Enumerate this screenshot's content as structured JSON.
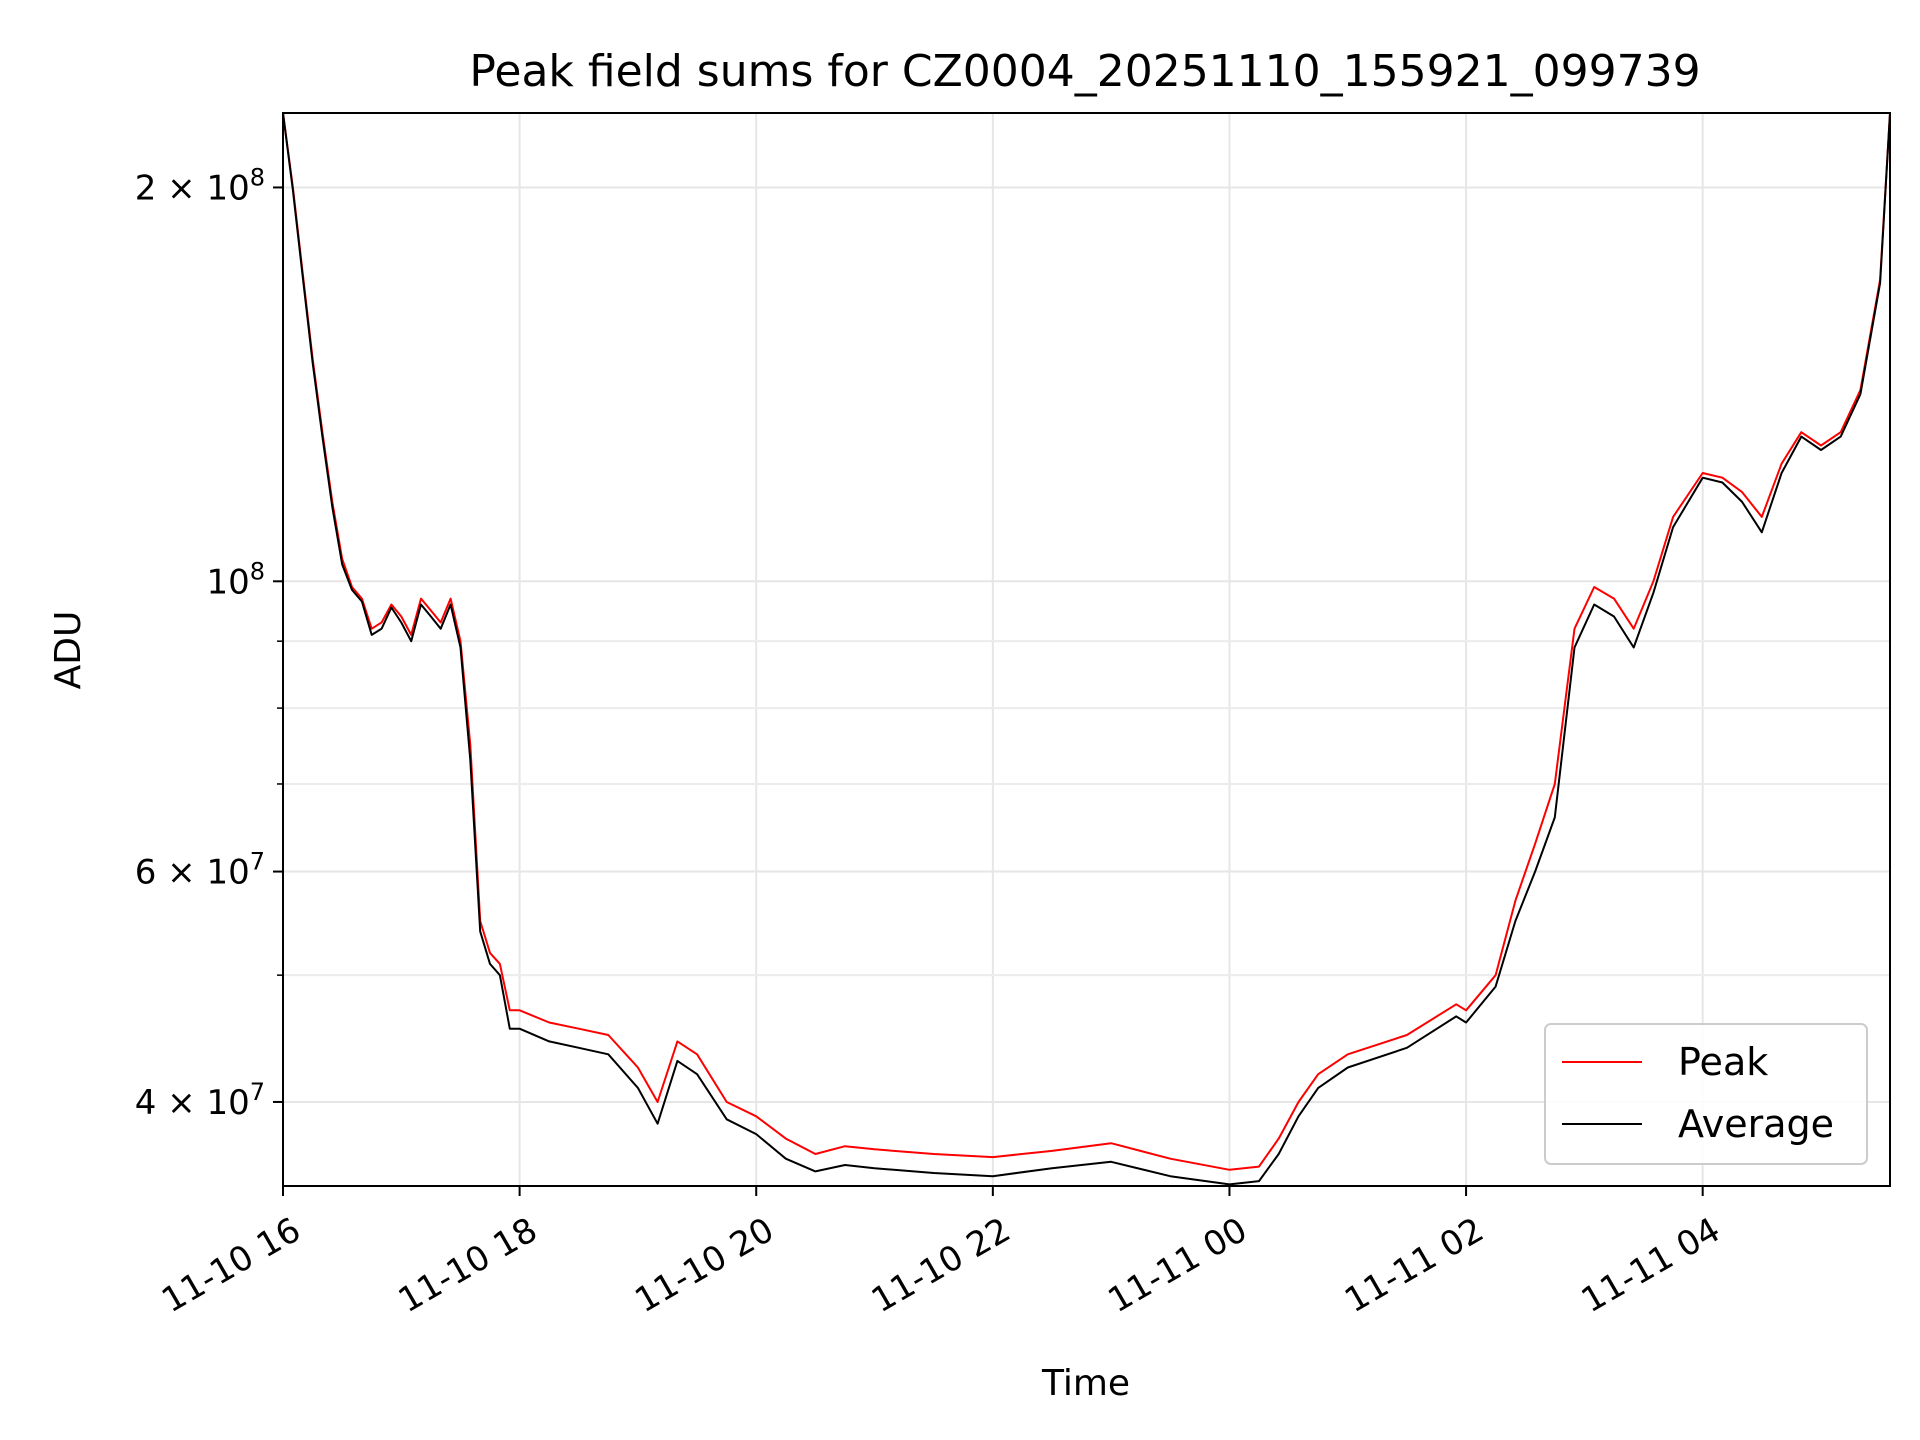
{
  "chart_data": {
    "type": "line",
    "title": "Peak field sums for CZ0004_20251110_155921_099739",
    "xlabel": "Time",
    "ylabel": "ADU",
    "yscale": "log",
    "xlim": [
      "2025-11-10 16:00",
      "2025-11-11 05:35"
    ],
    "ylim": [
      34500000,
      228000000
    ],
    "grid": true,
    "legend_position": "lower-right",
    "x_ticks": [
      {
        "time": "2025-11-10 16:00",
        "label": "11-10 16"
      },
      {
        "time": "2025-11-10 18:00",
        "label": "11-10 18"
      },
      {
        "time": "2025-11-10 20:00",
        "label": "11-10 20"
      },
      {
        "time": "2025-11-10 22:00",
        "label": "11-10 22"
      },
      {
        "time": "2025-11-11 00:00",
        "label": "11-11 00"
      },
      {
        "time": "2025-11-11 02:00",
        "label": "11-11 02"
      },
      {
        "time": "2025-11-11 04:00",
        "label": "11-11 04"
      }
    ],
    "y_major_ticks": [
      {
        "value": 200000000,
        "mantissa": "2",
        "exponent": "8"
      },
      {
        "value": 100000000,
        "mantissa": "",
        "exponent": "8"
      },
      {
        "value": 60000000,
        "mantissa": "6",
        "exponent": "7"
      },
      {
        "value": 40000000,
        "mantissa": "4",
        "exponent": "7"
      }
    ],
    "y_minor_values": [
      90000000,
      80000000,
      70000000,
      50000000
    ],
    "series": [
      {
        "name": "Peak",
        "color": "#ff0000",
        "x": [
          "2025-11-10 16:00",
          "2025-11-10 16:05",
          "2025-11-10 16:10",
          "2025-11-10 16:15",
          "2025-11-10 16:20",
          "2025-11-10 16:25",
          "2025-11-10 16:30",
          "2025-11-10 16:35",
          "2025-11-10 16:40",
          "2025-11-10 16:45",
          "2025-11-10 16:50",
          "2025-11-10 16:55",
          "2025-11-10 17:00",
          "2025-11-10 17:05",
          "2025-11-10 17:10",
          "2025-11-10 17:15",
          "2025-11-10 17:20",
          "2025-11-10 17:25",
          "2025-11-10 17:30",
          "2025-11-10 17:35",
          "2025-11-10 17:40",
          "2025-11-10 17:45",
          "2025-11-10 17:50",
          "2025-11-10 17:55",
          "2025-11-10 18:00",
          "2025-11-10 18:15",
          "2025-11-10 18:30",
          "2025-11-10 18:45",
          "2025-11-10 19:00",
          "2025-11-10 19:10",
          "2025-11-10 19:20",
          "2025-11-10 19:30",
          "2025-11-10 19:45",
          "2025-11-10 20:00",
          "2025-11-10 20:15",
          "2025-11-10 20:30",
          "2025-11-10 20:45",
          "2025-11-10 21:00",
          "2025-11-10 21:30",
          "2025-11-10 22:00",
          "2025-11-10 22:30",
          "2025-11-10 23:00",
          "2025-11-10 23:30",
          "2025-11-11 00:00",
          "2025-11-11 00:15",
          "2025-11-11 00:25",
          "2025-11-11 00:35",
          "2025-11-11 00:45",
          "2025-11-11 01:00",
          "2025-11-11 01:30",
          "2025-11-11 01:55",
          "2025-11-11 02:00",
          "2025-11-11 02:15",
          "2025-11-11 02:25",
          "2025-11-11 02:35",
          "2025-11-11 02:45",
          "2025-11-11 02:55",
          "2025-11-11 03:05",
          "2025-11-11 03:15",
          "2025-11-11 03:25",
          "2025-11-11 03:35",
          "2025-11-11 03:45",
          "2025-11-11 04:00",
          "2025-11-11 04:10",
          "2025-11-11 04:20",
          "2025-11-11 04:30",
          "2025-11-11 04:40",
          "2025-11-11 04:50",
          "2025-11-11 05:00",
          "2025-11-11 05:10",
          "2025-11-11 05:20",
          "2025-11-11 05:30",
          "2025-11-11 05:35"
        ],
        "values": [
          228000000,
          200000000,
          172000000,
          148000000,
          130000000,
          115000000,
          104000000,
          99000000,
          97000000,
          92000000,
          93000000,
          96000000,
          94000000,
          91000000,
          97000000,
          95000000,
          93000000,
          97000000,
          90000000,
          75000000,
          55000000,
          52000000,
          51000000,
          47000000,
          47000000,
          46000000,
          45500000,
          45000000,
          42500000,
          40000000,
          44500000,
          43500000,
          40000000,
          39000000,
          37500000,
          36500000,
          37000000,
          36800000,
          36500000,
          36300000,
          36700000,
          37200000,
          36200000,
          35500000,
          35700000,
          37500000,
          40000000,
          42000000,
          43500000,
          45000000,
          47500000,
          47000000,
          50000000,
          57000000,
          63000000,
          70000000,
          92000000,
          99000000,
          97000000,
          92000000,
          100000000,
          112000000,
          121000000,
          120000000,
          117000000,
          112000000,
          123000000,
          130000000,
          127000000,
          130000000,
          140000000,
          170000000,
          228000000
        ]
      },
      {
        "name": "Average",
        "color": "#000000",
        "x": [
          "2025-11-10 16:00",
          "2025-11-10 16:05",
          "2025-11-10 16:10",
          "2025-11-10 16:15",
          "2025-11-10 16:20",
          "2025-11-10 16:25",
          "2025-11-10 16:30",
          "2025-11-10 16:35",
          "2025-11-10 16:40",
          "2025-11-10 16:45",
          "2025-11-10 16:50",
          "2025-11-10 16:55",
          "2025-11-10 17:00",
          "2025-11-10 17:05",
          "2025-11-10 17:10",
          "2025-11-10 17:15",
          "2025-11-10 17:20",
          "2025-11-10 17:25",
          "2025-11-10 17:30",
          "2025-11-10 17:35",
          "2025-11-10 17:40",
          "2025-11-10 17:45",
          "2025-11-10 17:50",
          "2025-11-10 17:55",
          "2025-11-10 18:00",
          "2025-11-10 18:15",
          "2025-11-10 18:30",
          "2025-11-10 18:45",
          "2025-11-10 19:00",
          "2025-11-10 19:10",
          "2025-11-10 19:20",
          "2025-11-10 19:30",
          "2025-11-10 19:45",
          "2025-11-10 20:00",
          "2025-11-10 20:15",
          "2025-11-10 20:30",
          "2025-11-10 20:45",
          "2025-11-10 21:00",
          "2025-11-10 21:30",
          "2025-11-10 22:00",
          "2025-11-10 22:30",
          "2025-11-10 23:00",
          "2025-11-10 23:30",
          "2025-11-11 00:00",
          "2025-11-11 00:15",
          "2025-11-11 00:25",
          "2025-11-11 00:35",
          "2025-11-11 00:45",
          "2025-11-11 01:00",
          "2025-11-11 01:30",
          "2025-11-11 01:55",
          "2025-11-11 02:00",
          "2025-11-11 02:15",
          "2025-11-11 02:25",
          "2025-11-11 02:35",
          "2025-11-11 02:45",
          "2025-11-11 02:55",
          "2025-11-11 03:05",
          "2025-11-11 03:15",
          "2025-11-11 03:25",
          "2025-11-11 03:35",
          "2025-11-11 03:45",
          "2025-11-11 04:00",
          "2025-11-11 04:10",
          "2025-11-11 04:20",
          "2025-11-11 04:30",
          "2025-11-11 04:40",
          "2025-11-11 04:50",
          "2025-11-11 05:00",
          "2025-11-11 05:10",
          "2025-11-11 05:20",
          "2025-11-11 05:30",
          "2025-11-11 05:35"
        ],
        "values": [
          228000000,
          199000000,
          171000000,
          147000000,
          129000000,
          114000000,
          103000000,
          98500000,
          96500000,
          91000000,
          92000000,
          95500000,
          93000000,
          90000000,
          96000000,
          94000000,
          92000000,
          96000000,
          89000000,
          73000000,
          54000000,
          51000000,
          50000000,
          45500000,
          45500000,
          44500000,
          44000000,
          43500000,
          41000000,
          38500000,
          43000000,
          42000000,
          38800000,
          37800000,
          36200000,
          35400000,
          35800000,
          35600000,
          35300000,
          35100000,
          35600000,
          36000000,
          35100000,
          34600000,
          34800000,
          36500000,
          39000000,
          41000000,
          42500000,
          44000000,
          46500000,
          46000000,
          49000000,
          55000000,
          60000000,
          66000000,
          89000000,
          96000000,
          94000000,
          89000000,
          98000000,
          110000000,
          120000000,
          119000000,
          115000000,
          109000000,
          121000000,
          129000000,
          126000000,
          129000000,
          139000000,
          169000000,
          228000000
        ]
      }
    ]
  }
}
